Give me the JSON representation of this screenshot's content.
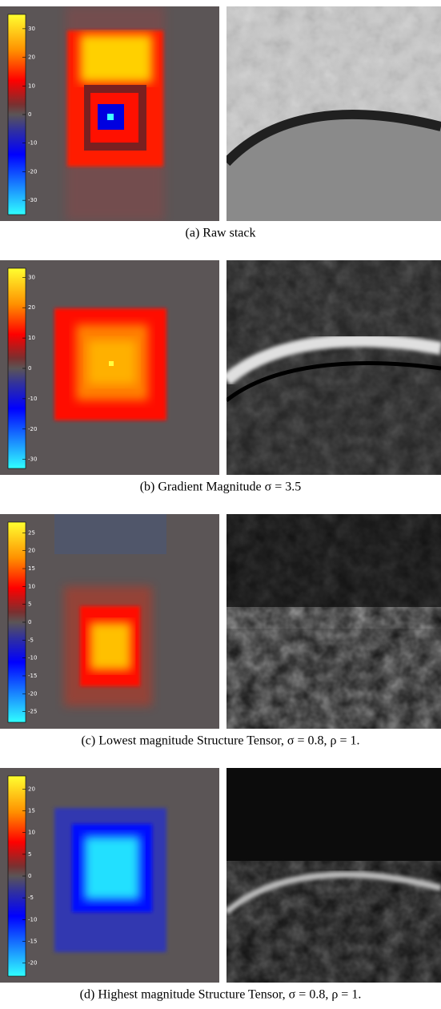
{
  "panels": [
    {
      "caption": "(a) Raw stack",
      "clim": [
        -35,
        35
      ],
      "ticks": [
        30,
        20,
        10,
        0,
        -10,
        -20,
        -30
      ]
    },
    {
      "caption": "(b) Gradient Magnitude σ = 3.5",
      "clim": [
        -33,
        33
      ],
      "ticks": [
        30,
        20,
        10,
        0,
        -10,
        -20,
        -30
      ]
    },
    {
      "caption": "(c) Lowest magnitude Structure Tensor, σ = 0.8, ρ = 1.",
      "clim": [
        -28,
        28
      ],
      "ticks": [
        25,
        20,
        15,
        10,
        5,
        0,
        -5,
        -10,
        -15,
        -20,
        -25
      ]
    },
    {
      "caption": "(d) Highest magnitude Structure Tensor, σ = 0.8, ρ = 1.",
      "clim": [
        -23,
        23
      ],
      "ticks": [
        20,
        15,
        10,
        5,
        0,
        -5,
        -10,
        -15,
        -20
      ]
    }
  ]
}
